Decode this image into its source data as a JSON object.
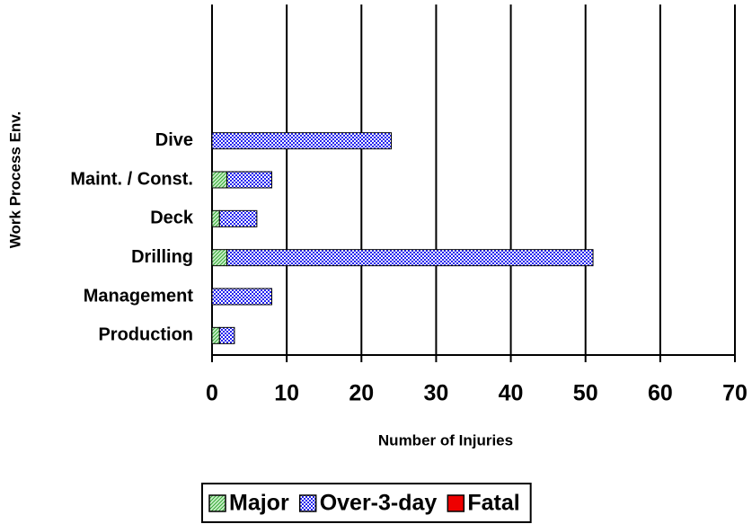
{
  "chart_data": {
    "type": "bar",
    "orientation": "horizontal",
    "stacked": true,
    "x_label": "Number of Injuries",
    "y_label": "Work Process Env.",
    "categories": [
      null,
      null,
      null,
      "Dive",
      "Maint. / Const.",
      "Deck",
      "Drilling",
      "Management",
      "Production"
    ],
    "series": [
      {
        "name": "Major",
        "color": "#33aa33",
        "pattern": "diagonal",
        "values": [
          null,
          null,
          null,
          0,
          2,
          1,
          2,
          0,
          1
        ]
      },
      {
        "name": "Over-3-day",
        "color": "#2222ee",
        "pattern": "checker",
        "values": [
          null,
          null,
          null,
          24,
          6,
          5,
          49,
          8,
          2
        ]
      },
      {
        "name": "Fatal",
        "color": "#ee0000",
        "pattern": "solid",
        "values": [
          null,
          null,
          null,
          0,
          0,
          0,
          0,
          0,
          0
        ]
      }
    ],
    "xlim": [
      0,
      70
    ],
    "xticks": [
      0,
      10,
      20,
      30,
      40,
      50,
      60,
      70
    ],
    "grid": true,
    "legend": "bottom"
  }
}
